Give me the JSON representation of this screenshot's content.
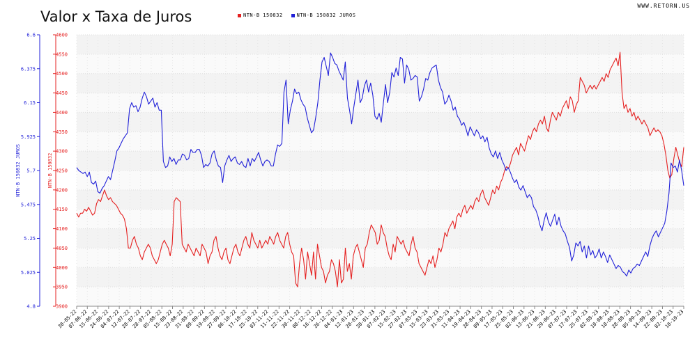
{
  "title": "Valor x Taxa de Juros",
  "site": "WWW.RETORN.US",
  "colors": {
    "price": "#e52020",
    "rate": "#2020d8"
  },
  "chart_data": {
    "type": "line",
    "title": "Valor x Taxa de Juros",
    "grid": true,
    "legend_position": "top",
    "y_left_outer": {
      "label": "NTN-B 150832 JUROS",
      "ticks": [
        "6.6",
        "6.375",
        "6.15",
        "5.925",
        "5.7",
        "5.475",
        "5.25",
        "5.025",
        "4.8"
      ],
      "range": [
        4.8,
        6.6
      ]
    },
    "y_left_inner": {
      "label": "NTN-B 150832",
      "ticks": [
        "4600",
        "4550",
        "4500",
        "4450",
        "4400",
        "4350",
        "4300",
        "4250",
        "4200",
        "4150",
        "4100",
        "4050",
        "4000",
        "3950",
        "3900"
      ],
      "range": [
        3900,
        4600
      ]
    },
    "x_tick_labels": [
      "30-05-22",
      "07-06-22",
      "15-06-22",
      "24-06-22",
      "04-07-22",
      "12-07-22",
      "20-07-22",
      "28-07-22",
      "05-08-22",
      "15-08-22",
      "23-08-22",
      "31-08-22",
      "09-09-22",
      "19-09-22",
      "27-09-22",
      "06-10-22",
      "17-10-22",
      "25-10-22",
      "03-11-22",
      "11-11-22",
      "22-11-22",
      "30-11-22",
      "08-12-22",
      "16-12-22",
      "26-12-22",
      "04-01-23",
      "12-01-23",
      "20-01-23",
      "30-01-23",
      "07-02-23",
      "15-02-23",
      "27-02-23",
      "07-03-23",
      "15-03-23",
      "23-03-23",
      "31-03-23",
      "11-04-23",
      "19-04-23",
      "28-04-23",
      "09-05-23",
      "17-05-23",
      "25-05-23",
      "02-06-23",
      "13-06-23",
      "21-06-23",
      "29-06-23",
      "07-07-23",
      "17-07-23",
      "25-07-23",
      "02-08-23",
      "10-08-23",
      "18-08-23",
      "28-08-23",
      "05-09-23",
      "14-09-23",
      "22-09-23",
      "02-10-23",
      "10-10-23"
    ],
    "series": [
      {
        "name": "NTN-B 150832",
        "axis": "inner",
        "values": [
          4140,
          4130,
          4140,
          4140,
          4150,
          4145,
          4155,
          4145,
          4135,
          4140,
          4165,
          4175,
          4170,
          4185,
          4200,
          4185,
          4175,
          4180,
          4170,
          4165,
          4160,
          4150,
          4140,
          4135,
          4125,
          4100,
          4050,
          4050,
          4070,
          4080,
          4060,
          4050,
          4030,
          4020,
          4040,
          4050,
          4060,
          4050,
          4030,
          4020,
          4010,
          4020,
          4040,
          4060,
          4070,
          4060,
          4050,
          4030,
          4060,
          4170,
          4180,
          4175,
          4170,
          4060,
          4050,
          4040,
          4060,
          4050,
          4040,
          4030,
          4050,
          4040,
          4030,
          4060,
          4050,
          4040,
          4010,
          4030,
          4040,
          4070,
          4080,
          4050,
          4030,
          4020,
          4040,
          4050,
          4020,
          4010,
          4030,
          4050,
          4060,
          4040,
          4030,
          4050,
          4070,
          4080,
          4060,
          4050,
          4090,
          4070,
          4060,
          4050,
          4070,
          4050,
          4060,
          4070,
          4060,
          4080,
          4070,
          4060,
          4080,
          4090,
          4070,
          4060,
          4050,
          4080,
          4090,
          4060,
          4040,
          4030,
          3960,
          3950,
          4010,
          4050,
          4020,
          3970,
          4040,
          4010,
          3980,
          4040,
          3970,
          4060,
          4030,
          4000,
          3990,
          3960,
          3980,
          3990,
          4020,
          4010,
          3990,
          3950,
          4020,
          3960,
          3970,
          4050,
          3990,
          4010,
          3970,
          4030,
          4050,
          4060,
          4040,
          4020,
          4000,
          4050,
          4060,
          4090,
          4110,
          4100,
          4090,
          4060,
          4070,
          4110,
          4090,
          4080,
          4050,
          4030,
          4020,
          4060,
          4040,
          4080,
          4070,
          4060,
          4070,
          4050,
          4040,
          4030,
          4060,
          4080,
          4050,
          4040,
          4010,
          4000,
          3990,
          3980,
          4000,
          4020,
          4010,
          4030,
          4000,
          4020,
          4050,
          4040,
          4060,
          4090,
          4080,
          4100,
          4110,
          4120,
          4100,
          4130,
          4140,
          4130,
          4150,
          4160,
          4140,
          4150,
          4160,
          4150,
          4170,
          4180,
          4170,
          4190,
          4200,
          4180,
          4170,
          4160,
          4180,
          4200,
          4190,
          4210,
          4200,
          4220,
          4230,
          4250,
          4260,
          4255,
          4270,
          4290,
          4300,
          4310,
          4290,
          4320,
          4310,
          4300,
          4320,
          4340,
          4330,
          4350,
          4360,
          4350,
          4370,
          4380,
          4370,
          4390,
          4360,
          4350,
          4380,
          4400,
          4390,
          4380,
          4400,
          4390,
          4410,
          4420,
          4430,
          4410,
          4440,
          4430,
          4400,
          4420,
          4430,
          4490,
          4480,
          4470,
          4450,
          4460,
          4470,
          4460,
          4470,
          4460,
          4470,
          4480,
          4490,
          4480,
          4500,
          4490,
          4510,
          4520,
          4530,
          4540,
          4520,
          4555,
          4450,
          4410,
          4420,
          4400,
          4410,
          4390,
          4400,
          4380,
          4390,
          4380,
          4370,
          4380,
          4370,
          4360,
          4340,
          4350,
          4360,
          4350,
          4355,
          4350,
          4340,
          4320,
          4290,
          4250,
          4230,
          4240,
          4280,
          4310,
          4290,
          4270,
          4260,
          4310
        ]
      },
      {
        "name": "NTN-B 150832 JUROS",
        "axis": "outer",
        "values": [
          5.72,
          5.7,
          5.69,
          5.68,
          5.69,
          5.66,
          5.69,
          5.62,
          5.61,
          5.63,
          5.56,
          5.55,
          5.58,
          5.6,
          5.63,
          5.66,
          5.64,
          5.7,
          5.76,
          5.83,
          5.85,
          5.88,
          5.91,
          5.93,
          5.95,
          6.11,
          6.15,
          6.12,
          6.13,
          6.09,
          6.12,
          6.18,
          6.22,
          6.19,
          6.14,
          6.16,
          6.18,
          6.12,
          6.15,
          6.1,
          6.1,
          5.76,
          5.72,
          5.73,
          5.79,
          5.76,
          5.78,
          5.74,
          5.77,
          5.77,
          5.81,
          5.8,
          5.77,
          5.78,
          5.84,
          5.82,
          5.82,
          5.84,
          5.84,
          5.8,
          5.72,
          5.74,
          5.73,
          5.75,
          5.81,
          5.83,
          5.77,
          5.73,
          5.72,
          5.62,
          5.73,
          5.77,
          5.8,
          5.76,
          5.78,
          5.79,
          5.75,
          5.74,
          5.76,
          5.73,
          5.72,
          5.78,
          5.73,
          5.78,
          5.76,
          5.79,
          5.82,
          5.77,
          5.73,
          5.76,
          5.77,
          5.76,
          5.73,
          5.73,
          5.81,
          5.87,
          5.86,
          5.88,
          6.22,
          6.3,
          6.01,
          6.1,
          6.16,
          6.24,
          6.21,
          6.22,
          6.17,
          6.14,
          6.12,
          6.05,
          6.0,
          5.95,
          5.97,
          6.05,
          6.15,
          6.3,
          6.42,
          6.45,
          6.39,
          6.33,
          6.48,
          6.45,
          6.41,
          6.4,
          6.36,
          6.33,
          6.3,
          6.42,
          6.18,
          6.1,
          6.01,
          6.12,
          6.21,
          6.3,
          6.15,
          6.18,
          6.26,
          6.3,
          6.22,
          6.28,
          6.2,
          6.06,
          6.04,
          6.08,
          6.02,
          6.15,
          6.27,
          6.15,
          6.22,
          6.35,
          6.32,
          6.38,
          6.33,
          6.45,
          6.44,
          6.28,
          6.4,
          6.37,
          6.3,
          6.31,
          6.33,
          6.32,
          6.16,
          6.19,
          6.24,
          6.31,
          6.3,
          6.35,
          6.38,
          6.39,
          6.4,
          6.3,
          6.25,
          6.22,
          6.14,
          6.16,
          6.2,
          6.16,
          6.1,
          6.12,
          6.06,
          6.04,
          6.0,
          6.02,
          5.98,
          5.93,
          5.99,
          5.96,
          5.93,
          5.97,
          5.95,
          5.91,
          5.93,
          5.89,
          5.92,
          5.85,
          5.81,
          5.79,
          5.83,
          5.78,
          5.82,
          5.77,
          5.74,
          5.7,
          5.72,
          5.69,
          5.65,
          5.62,
          5.64,
          5.59,
          5.57,
          5.6,
          5.56,
          5.52,
          5.54,
          5.52,
          5.46,
          5.44,
          5.4,
          5.34,
          5.3,
          5.37,
          5.42,
          5.36,
          5.33,
          5.37,
          5.41,
          5.34,
          5.39,
          5.33,
          5.3,
          5.28,
          5.23,
          5.19,
          5.1,
          5.14,
          5.22,
          5.2,
          5.23,
          5.16,
          5.2,
          5.12,
          5.2,
          5.14,
          5.17,
          5.12,
          5.14,
          5.18,
          5.12,
          5.16,
          5.13,
          5.09,
          5.14,
          5.11,
          5.08,
          5.05,
          5.07,
          5.06,
          5.03,
          5.02,
          5.0,
          5.04,
          5.02,
          5.05,
          5.06,
          5.08,
          5.07,
          5.1,
          5.13,
          5.16,
          5.13,
          5.2,
          5.25,
          5.28,
          5.3,
          5.26,
          5.29,
          5.32,
          5.35,
          5.43,
          5.55,
          5.75,
          5.72,
          5.73,
          5.69,
          5.77,
          5.7,
          5.6
        ]
      }
    ]
  }
}
